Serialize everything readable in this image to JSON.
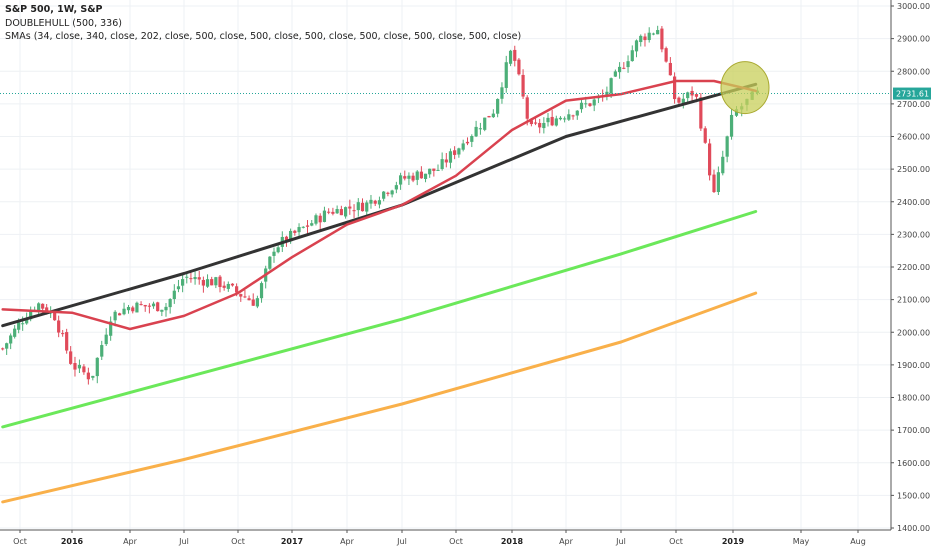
{
  "legend": {
    "title": "S&P 500, 1W, S&P",
    "line2": "DOUBLEHULL (500, 336)",
    "line3": "SMAs (34, close, 340, close, 202, close, 500, close, 500, close, 500, close, 500, close, 500, close, 500, close)"
  },
  "colors": {
    "up": "#4caf78",
    "down": "#e04a5a",
    "sma_short": "#d9424f",
    "sma_long": "#333333",
    "sma_green": "#6be85a",
    "sma_orange": "#f9b04a",
    "price_line": "#26a69a",
    "highlight_fill": "#c8cf5a",
    "highlight_stroke": "#a9a930"
  },
  "chart_data": {
    "type": "line",
    "chart_style": "candlestick",
    "title": "S&P 500, 1W, S&P",
    "indicators": [
      "DOUBLEHULL (500, 336)",
      "SMAs (34, close, 340, close, 202, close, 500, close, 500, close, 500, close, 500, close, 500, close, 500, close)"
    ],
    "x_tick_labels": [
      "Oct",
      "2016",
      "Apr",
      "Jul",
      "Oct",
      "2017",
      "Apr",
      "Jul",
      "Oct",
      "2018",
      "Apr",
      "Jul",
      "Oct",
      "2019",
      "May",
      "Aug"
    ],
    "y_tick_labels": [
      "1400.00",
      "1500.00",
      "1600.00",
      "1700.00",
      "1800.00",
      "1900.00",
      "2000.00",
      "2100.00",
      "2200.00",
      "2300.00",
      "2400.00",
      "2500.00",
      "2600.00",
      "2700.00",
      "2800.00",
      "2900.00",
      "3000.00"
    ],
    "ylim": [
      1400,
      3000
    ],
    "grid": true,
    "last_price_label": "2731.61",
    "last_price": 2731.61,
    "highlight_region": {
      "x": "2019-01",
      "y_range": [
        2700,
        2800
      ]
    },
    "price_anchors": [
      {
        "date": "2015-09",
        "close": 1950
      },
      {
        "date": "2015-10",
        "close": 2030
      },
      {
        "date": "2015-11",
        "close": 2090
      },
      {
        "date": "2015-12",
        "close": 2050
      },
      {
        "date": "2016-01",
        "close": 1900
      },
      {
        "date": "2016-02",
        "close": 1860
      },
      {
        "date": "2016-03",
        "close": 2050
      },
      {
        "date": "2016-04",
        "close": 2080
      },
      {
        "date": "2016-06",
        "close": 2080
      },
      {
        "date": "2016-07",
        "close": 2170
      },
      {
        "date": "2016-09",
        "close": 2150
      },
      {
        "date": "2016-11",
        "close": 2090
      },
      {
        "date": "2016-12",
        "close": 2260
      },
      {
        "date": "2017-03",
        "close": 2370
      },
      {
        "date": "2017-05",
        "close": 2390
      },
      {
        "date": "2017-07",
        "close": 2470
      },
      {
        "date": "2017-09",
        "close": 2500
      },
      {
        "date": "2017-12",
        "close": 2680
      },
      {
        "date": "2018-01",
        "close": 2870
      },
      {
        "date": "2018-02",
        "close": 2620
      },
      {
        "date": "2018-04",
        "close": 2670
      },
      {
        "date": "2018-06",
        "close": 2720
      },
      {
        "date": "2018-08",
        "close": 2900
      },
      {
        "date": "2018-09",
        "close": 2930
      },
      {
        "date": "2018-10",
        "close": 2700
      },
      {
        "date": "2018-11",
        "close": 2740
      },
      {
        "date": "2018-12",
        "close": 2420
      },
      {
        "date": "2019-01",
        "close": 2670
      },
      {
        "date": "2019-02",
        "close": 2730
      }
    ],
    "series": [
      {
        "values": [
          {
            "date": "2015-09",
            "value": 2070
          },
          {
            "date": "2016-01",
            "value": 2060
          },
          {
            "date": "2016-04",
            "value": 2010
          },
          {
            "date": "2016-07",
            "value": 2050
          },
          {
            "date": "2016-10",
            "value": 2120
          },
          {
            "date": "2017-01",
            "value": 2230
          },
          {
            "date": "2017-04",
            "value": 2330
          },
          {
            "date": "2017-07",
            "value": 2390
          },
          {
            "date": "2017-10",
            "value": 2480
          },
          {
            "date": "2018-01",
            "value": 2620
          },
          {
            "date": "2018-04",
            "value": 2710
          },
          {
            "date": "2018-07",
            "value": 2730
          },
          {
            "date": "2018-10",
            "value": 2770
          },
          {
            "date": "2018-12",
            "value": 2770
          },
          {
            "date": "2019-02",
            "value": 2740
          }
        ]
      },
      {
        "values": [
          {
            "date": "2015-09",
            "value": 2020
          },
          {
            "date": "2016-07",
            "value": 2180
          },
          {
            "date": "2017-07",
            "value": 2390
          },
          {
            "date": "2018-04",
            "value": 2600
          },
          {
            "date": "2019-02",
            "value": 2760
          }
        ]
      },
      {
        "values": [
          {
            "date": "2015-09",
            "value": 1710
          },
          {
            "date": "2016-07",
            "value": 1860
          },
          {
            "date": "2017-07",
            "value": 2040
          },
          {
            "date": "2018-07",
            "value": 2240
          },
          {
            "date": "2019-02",
            "value": 2370
          }
        ]
      },
      {
        "values": [
          {
            "date": "2015-09",
            "value": 1480
          },
          {
            "date": "2016-07",
            "value": 1610
          },
          {
            "date": "2017-07",
            "value": 1780
          },
          {
            "date": "2018-07",
            "value": 1970
          },
          {
            "date": "2019-02",
            "value": 2120
          }
        ]
      }
    ]
  }
}
